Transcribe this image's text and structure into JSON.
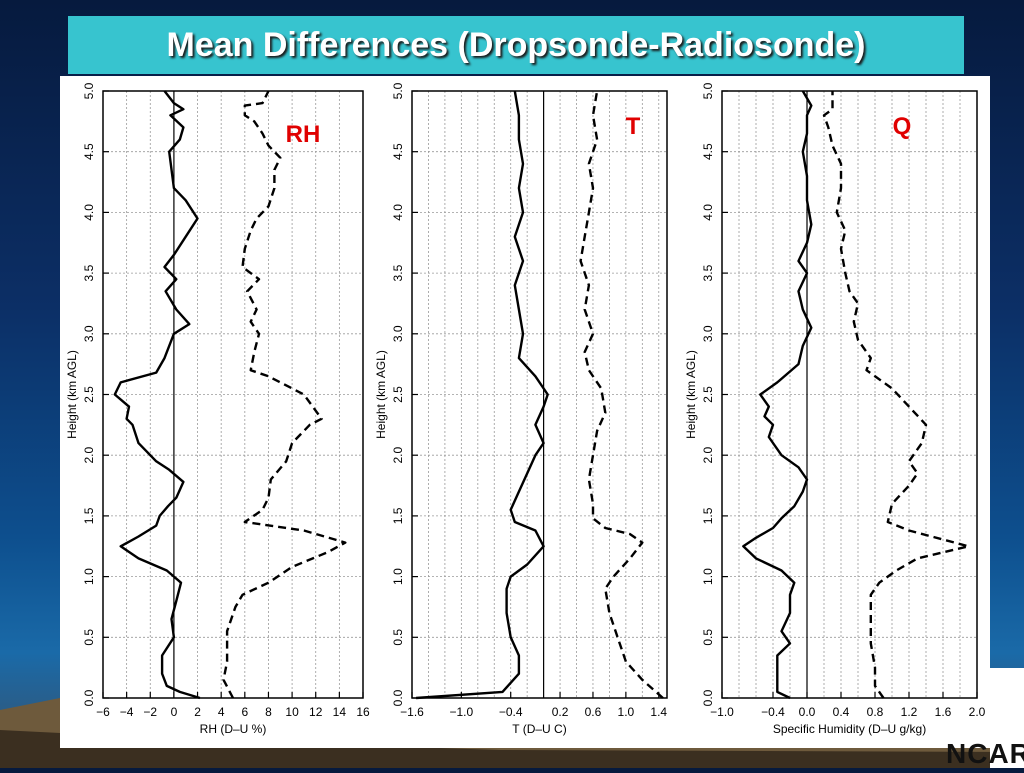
{
  "slide": {
    "title": "Mean Differences (Dropsonde-Radiosonde)",
    "logo": "NCAR",
    "colors": {
      "title_bg": "#37c4cf",
      "title_text": "#ffffff",
      "panel_label": "#e00000"
    }
  },
  "chart_data": [
    {
      "type": "line",
      "panel_label": "RH",
      "xlabel": "RH (D–U %)",
      "ylabel": "Height (km AGL)",
      "xlim": [
        -6,
        16
      ],
      "ylim": [
        0,
        5
      ],
      "xticks": [
        -6,
        -4,
        -2,
        0,
        2,
        4,
        6,
        8,
        10,
        12,
        14,
        16
      ],
      "xtick_labels": [
        "−6",
        "−4",
        "−2",
        "0",
        "2",
        "4",
        "6",
        "8",
        "10",
        "12",
        "14",
        "16"
      ],
      "yticks": [
        0,
        0.5,
        1,
        1.5,
        2,
        2.5,
        3,
        3.5,
        4,
        4.5,
        5
      ],
      "ytick_labels": [
        "0.0",
        "0.5",
        "1.0",
        "1.5",
        "2.0",
        "2.5",
        "3.0",
        "3.5",
        "4.0",
        "4.5",
        "5.0"
      ],
      "grid": true,
      "series": [
        {
          "style": "solid",
          "values": [
            [
              2.2,
              0.0
            ],
            [
              0.5,
              0.05
            ],
            [
              -0.6,
              0.1
            ],
            [
              -1.0,
              0.2
            ],
            [
              -1.0,
              0.35
            ],
            [
              0.0,
              0.5
            ],
            [
              -0.2,
              0.65
            ],
            [
              0.2,
              0.8
            ],
            [
              0.6,
              0.95
            ],
            [
              -0.6,
              1.05
            ],
            [
              -3.0,
              1.15
            ],
            [
              -4.5,
              1.25
            ],
            [
              -3.0,
              1.33
            ],
            [
              -1.5,
              1.42
            ],
            [
              -1.2,
              1.5
            ],
            [
              -0.5,
              1.58
            ],
            [
              0.2,
              1.65
            ],
            [
              0.8,
              1.78
            ],
            [
              -0.4,
              1.88
            ],
            [
              -1.5,
              1.95
            ],
            [
              -3.0,
              2.1
            ],
            [
              -3.5,
              2.25
            ],
            [
              -4.0,
              2.3
            ],
            [
              -3.8,
              2.4
            ],
            [
              -5.0,
              2.5
            ],
            [
              -4.5,
              2.6
            ],
            [
              -1.5,
              2.68
            ],
            [
              -0.8,
              2.8
            ],
            [
              0.0,
              3.0
            ],
            [
              1.3,
              3.08
            ],
            [
              0.2,
              3.2
            ],
            [
              -0.7,
              3.35
            ],
            [
              0.2,
              3.45
            ],
            [
              -0.8,
              3.55
            ],
            [
              0.0,
              3.65
            ],
            [
              1.0,
              3.8
            ],
            [
              2.0,
              3.95
            ],
            [
              1.0,
              4.1
            ],
            [
              0.0,
              4.2
            ],
            [
              -0.4,
              4.5
            ],
            [
              0.5,
              4.6
            ],
            [
              0.8,
              4.7
            ],
            [
              -0.3,
              4.8
            ],
            [
              0.8,
              4.85
            ],
            [
              0.0,
              4.9
            ],
            [
              -0.8,
              5.0
            ]
          ]
        },
        {
          "style": "dashed",
          "values": [
            [
              5.0,
              0.0
            ],
            [
              4.2,
              0.15
            ],
            [
              4.5,
              0.3
            ],
            [
              4.5,
              0.55
            ],
            [
              5.2,
              0.75
            ],
            [
              5.8,
              0.85
            ],
            [
              8.0,
              0.95
            ],
            [
              10.0,
              1.08
            ],
            [
              13.0,
              1.2
            ],
            [
              14.5,
              1.28
            ],
            [
              11.0,
              1.38
            ],
            [
              6.0,
              1.45
            ],
            [
              7.5,
              1.55
            ],
            [
              8.0,
              1.65
            ],
            [
              8.2,
              1.8
            ],
            [
              9.5,
              1.95
            ],
            [
              10.0,
              2.1
            ],
            [
              11.5,
              2.25
            ],
            [
              12.5,
              2.3
            ],
            [
              11.0,
              2.5
            ],
            [
              8.0,
              2.65
            ],
            [
              6.5,
              2.7
            ],
            [
              6.8,
              2.85
            ],
            [
              7.2,
              3.0
            ],
            [
              6.5,
              3.1
            ],
            [
              7.0,
              3.2
            ],
            [
              6.2,
              3.35
            ],
            [
              7.2,
              3.45
            ],
            [
              5.8,
              3.55
            ],
            [
              6.0,
              3.7
            ],
            [
              6.5,
              3.85
            ],
            [
              7.0,
              3.95
            ],
            [
              8.0,
              4.05
            ],
            [
              8.5,
              4.2
            ],
            [
              8.5,
              4.35
            ],
            [
              9.0,
              4.45
            ],
            [
              8.0,
              4.55
            ],
            [
              7.5,
              4.65
            ],
            [
              6.8,
              4.75
            ],
            [
              6.0,
              4.8
            ],
            [
              6.0,
              4.88
            ],
            [
              7.5,
              4.9
            ],
            [
              8.0,
              5.0
            ]
          ]
        }
      ]
    },
    {
      "type": "line",
      "panel_label": "T",
      "xlabel": "T (D–U C)",
      "ylabel": "Height (km AGL)",
      "xlim": [
        -1.6,
        1.5
      ],
      "ylim": [
        0,
        5
      ],
      "xticks": [
        -1.6,
        -1.0,
        -0.4,
        0.2,
        0.6,
        1.0,
        1.4
      ],
      "xtick_labels": [
        "−1.6",
        "−1.0",
        "−0.4",
        "0.2",
        "0.6",
        "1.0",
        "1.4"
      ],
      "grid_x": [
        -1.6,
        -1.4,
        -1.2,
        -1.0,
        -0.8,
        -0.6,
        -0.4,
        -0.2,
        0.0,
        0.2,
        0.4,
        0.6,
        0.8,
        1.0,
        1.2,
        1.4
      ],
      "yticks": [
        0,
        0.5,
        1,
        1.5,
        2,
        2.5,
        3,
        3.5,
        4,
        4.5,
        5
      ],
      "ytick_labels": [
        "0.0",
        "0.5",
        "1.0",
        "1.5",
        "2.0",
        "2.5",
        "3.0",
        "3.5",
        "4.0",
        "4.5",
        "5.0"
      ],
      "grid": true,
      "series": [
        {
          "style": "solid",
          "values": [
            [
              -1.55,
              0.0
            ],
            [
              -0.5,
              0.05
            ],
            [
              -0.3,
              0.2
            ],
            [
              -0.3,
              0.35
            ],
            [
              -0.4,
              0.5
            ],
            [
              -0.45,
              0.7
            ],
            [
              -0.45,
              0.9
            ],
            [
              -0.4,
              1.0
            ],
            [
              -0.2,
              1.1
            ],
            [
              0.0,
              1.25
            ],
            [
              -0.1,
              1.38
            ],
            [
              -0.35,
              1.45
            ],
            [
              -0.4,
              1.55
            ],
            [
              -0.3,
              1.7
            ],
            [
              -0.2,
              1.85
            ],
            [
              -0.1,
              2.0
            ],
            [
              0.0,
              2.1
            ],
            [
              -0.1,
              2.25
            ],
            [
              0.0,
              2.4
            ],
            [
              0.05,
              2.5
            ],
            [
              -0.1,
              2.65
            ],
            [
              -0.3,
              2.8
            ],
            [
              -0.25,
              3.0
            ],
            [
              -0.3,
              3.2
            ],
            [
              -0.35,
              3.4
            ],
            [
              -0.25,
              3.6
            ],
            [
              -0.35,
              3.8
            ],
            [
              -0.25,
              4.0
            ],
            [
              -0.3,
              4.2
            ],
            [
              -0.25,
              4.4
            ],
            [
              -0.3,
              4.6
            ],
            [
              -0.3,
              4.8
            ],
            [
              -0.35,
              5.0
            ]
          ]
        },
        {
          "style": "dashed",
          "values": [
            [
              1.45,
              0.0
            ],
            [
              1.2,
              0.15
            ],
            [
              1.0,
              0.3
            ],
            [
              0.9,
              0.5
            ],
            [
              0.8,
              0.7
            ],
            [
              0.75,
              0.9
            ],
            [
              0.85,
              1.0
            ],
            [
              1.05,
              1.15
            ],
            [
              1.2,
              1.28
            ],
            [
              1.05,
              1.35
            ],
            [
              0.75,
              1.4
            ],
            [
              0.6,
              1.48
            ],
            [
              0.6,
              1.6
            ],
            [
              0.55,
              1.8
            ],
            [
              0.6,
              2.0
            ],
            [
              0.65,
              2.2
            ],
            [
              0.75,
              2.35
            ],
            [
              0.7,
              2.55
            ],
            [
              0.55,
              2.7
            ],
            [
              0.5,
              2.85
            ],
            [
              0.6,
              3.0
            ],
            [
              0.5,
              3.2
            ],
            [
              0.55,
              3.4
            ],
            [
              0.45,
              3.6
            ],
            [
              0.5,
              3.8
            ],
            [
              0.55,
              4.0
            ],
            [
              0.6,
              4.2
            ],
            [
              0.55,
              4.4
            ],
            [
              0.65,
              4.6
            ],
            [
              0.6,
              4.8
            ],
            [
              0.65,
              5.0
            ]
          ]
        }
      ]
    },
    {
      "type": "line",
      "panel_label": "Q",
      "xlabel": "Specific Humidity (D–U g/kg)",
      "ylabel": "Height (km AGL)",
      "xlim": [
        -1.0,
        2.0
      ],
      "ylim": [
        0,
        5
      ],
      "xticks": [
        -1.0,
        -0.4,
        0.0,
        0.4,
        0.8,
        1.2,
        1.6,
        2.0
      ],
      "xtick_labels": [
        "−1.0",
        "−0.4",
        "0.0",
        "0.4",
        "0.8",
        "1.2",
        "1.6",
        "2.0"
      ],
      "grid_x": [
        -1.0,
        -0.8,
        -0.6,
        -0.4,
        -0.2,
        0.0,
        0.2,
        0.4,
        0.6,
        0.8,
        1.0,
        1.2,
        1.4,
        1.6,
        1.8,
        2.0
      ],
      "yticks": [
        0,
        0.5,
        1,
        1.5,
        2,
        2.5,
        3,
        3.5,
        4,
        4.5,
        5
      ],
      "ytick_labels": [
        "0.0",
        "0.5",
        "1.0",
        "1.5",
        "2.0",
        "2.5",
        "3.0",
        "3.5",
        "4.0",
        "4.5",
        "5.0"
      ],
      "grid": true,
      "series": [
        {
          "style": "solid",
          "values": [
            [
              -0.2,
              0.0
            ],
            [
              -0.35,
              0.05
            ],
            [
              -0.35,
              0.2
            ],
            [
              -0.35,
              0.35
            ],
            [
              -0.2,
              0.45
            ],
            [
              -0.3,
              0.55
            ],
            [
              -0.2,
              0.7
            ],
            [
              -0.2,
              0.85
            ],
            [
              -0.15,
              0.95
            ],
            [
              -0.3,
              1.05
            ],
            [
              -0.6,
              1.15
            ],
            [
              -0.75,
              1.25
            ],
            [
              -0.6,
              1.32
            ],
            [
              -0.4,
              1.4
            ],
            [
              -0.3,
              1.48
            ],
            [
              -0.15,
              1.58
            ],
            [
              -0.05,
              1.7
            ],
            [
              0.0,
              1.8
            ],
            [
              -0.1,
              1.9
            ],
            [
              -0.3,
              2.0
            ],
            [
              -0.45,
              2.15
            ],
            [
              -0.4,
              2.25
            ],
            [
              -0.5,
              2.32
            ],
            [
              -0.45,
              2.4
            ],
            [
              -0.55,
              2.5
            ],
            [
              -0.35,
              2.6
            ],
            [
              -0.1,
              2.75
            ],
            [
              -0.05,
              2.9
            ],
            [
              0.05,
              3.05
            ],
            [
              -0.05,
              3.2
            ],
            [
              -0.1,
              3.35
            ],
            [
              0.0,
              3.5
            ],
            [
              -0.1,
              3.6
            ],
            [
              0.0,
              3.75
            ],
            [
              0.05,
              3.9
            ],
            [
              0.0,
              4.1
            ],
            [
              0.0,
              4.3
            ],
            [
              -0.05,
              4.5
            ],
            [
              0.0,
              4.65
            ],
            [
              0.0,
              4.8
            ],
            [
              0.05,
              4.88
            ],
            [
              -0.05,
              5.0
            ]
          ]
        },
        {
          "style": "dashed",
          "values": [
            [
              0.9,
              0.0
            ],
            [
              0.8,
              0.1
            ],
            [
              0.8,
              0.25
            ],
            [
              0.75,
              0.45
            ],
            [
              0.75,
              0.65
            ],
            [
              0.75,
              0.85
            ],
            [
              0.85,
              0.95
            ],
            [
              1.05,
              1.05
            ],
            [
              1.3,
              1.15
            ],
            [
              1.9,
              1.25
            ],
            [
              1.2,
              1.38
            ],
            [
              0.95,
              1.45
            ],
            [
              1.0,
              1.6
            ],
            [
              1.2,
              1.75
            ],
            [
              1.3,
              1.85
            ],
            [
              1.2,
              1.95
            ],
            [
              1.35,
              2.1
            ],
            [
              1.4,
              2.25
            ],
            [
              1.2,
              2.4
            ],
            [
              1.0,
              2.55
            ],
            [
              0.7,
              2.7
            ],
            [
              0.75,
              2.8
            ],
            [
              0.6,
              2.95
            ],
            [
              0.55,
              3.1
            ],
            [
              0.6,
              3.25
            ],
            [
              0.5,
              3.35
            ],
            [
              0.45,
              3.5
            ],
            [
              0.4,
              3.7
            ],
            [
              0.45,
              3.85
            ],
            [
              0.35,
              4.0
            ],
            [
              0.4,
              4.2
            ],
            [
              0.4,
              4.4
            ],
            [
              0.3,
              4.55
            ],
            [
              0.25,
              4.7
            ],
            [
              0.2,
              4.8
            ],
            [
              0.3,
              4.85
            ],
            [
              0.3,
              5.0
            ]
          ]
        }
      ]
    }
  ]
}
